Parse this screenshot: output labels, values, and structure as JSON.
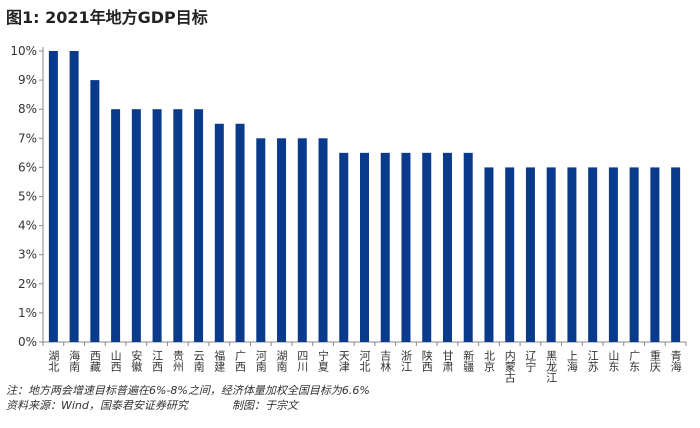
{
  "chart_data": {
    "type": "bar",
    "title": "图1: 2021年地方GDP目标",
    "categories": [
      "湖北",
      "海南",
      "西藏",
      "山西",
      "安徽",
      "江西",
      "贵州",
      "云南",
      "福建",
      "广西",
      "河南",
      "湖南",
      "四川",
      "宁夏",
      "天津",
      "河北",
      "吉林",
      "浙江",
      "陕西",
      "甘肃",
      "新疆",
      "北京",
      "内蒙古",
      "辽宁",
      "黑龙江",
      "上海",
      "江苏",
      "山东",
      "广东",
      "重庆",
      "青海"
    ],
    "values": [
      10,
      10,
      9,
      8,
      8,
      8,
      8,
      8,
      7.5,
      7.5,
      7,
      7,
      7,
      7,
      6.5,
      6.5,
      6.5,
      6.5,
      6.5,
      6.5,
      6.5,
      6,
      6,
      6,
      6,
      6,
      6,
      6,
      6,
      6,
      6
    ],
    "unit": "%",
    "ylim": [
      0,
      10
    ],
    "yticks": [
      "0%",
      "1%",
      "2%",
      "3%",
      "4%",
      "5%",
      "6%",
      "7%",
      "8%",
      "9%",
      "10%"
    ],
    "grid": false,
    "color": "#0a3a8c"
  },
  "notes": {
    "note": "注：地方两会增速目标普遍在6%-8%之间，经济体量加权全国目标为6.6%",
    "source": "资料来源：Wind，国泰君安证券研究",
    "author": "制图：于宗文"
  }
}
